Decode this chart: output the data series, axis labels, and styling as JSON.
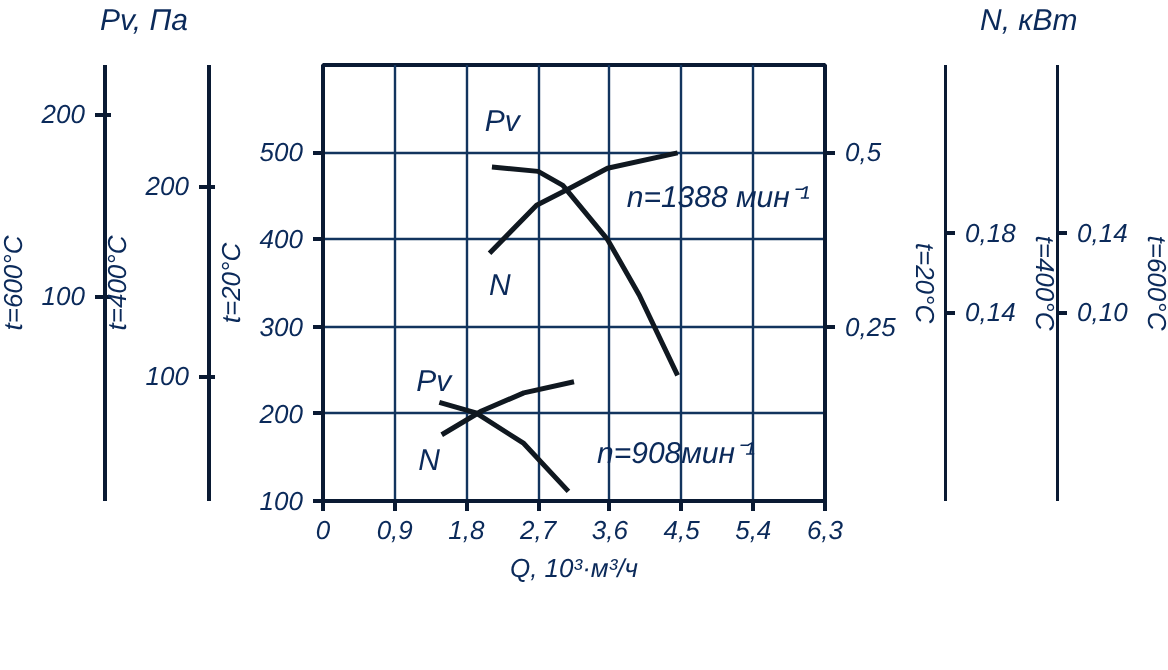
{
  "chart_data": [
    {
      "type": "other",
      "annotations": [
        "200",
        "100",
        "t=600°C"
      ]
    },
    {
      "type": "other",
      "annotations": [
        "200",
        "100",
        "t=400°C"
      ]
    },
    {
      "type": "line",
      "xlabel": "Q, 10³·м³/ч",
      "ylabel": "Pv, Па",
      "y2label": "N, кВт",
      "xlim": [
        0,
        6.3
      ],
      "xticks": [
        0,
        {
          "value": 0.9,
          "label": "0,9"
        },
        {
          "value": 1.8,
          "label": "1,8"
        },
        {
          "value": 2.7,
          "label": "2,7"
        },
        {
          "value": 3.6,
          "label": "3,6"
        },
        {
          "value": 4.5,
          "label": "4,5"
        },
        {
          "value": 5.4,
          "label": "5,4"
        },
        {
          "value": 6.3,
          "label": "6,3"
        }
      ],
      "ylim": [
        100,
        600
      ],
      "yticks": [
        100,
        200,
        300,
        400,
        500
      ],
      "y2lim": [
        0,
        0.625
      ],
      "y2ticks": [
        {
          "value": 0.25,
          "label": "0,25"
        },
        {
          "value": 0.5,
          "label": "0,5"
        }
      ],
      "grid": true,
      "line_style": "solid",
      "series": [
        {
          "color": "#101820",
          "x": [
            2.12,
            2.7,
            3.01,
            3.57,
            3.97,
            4.45
          ],
          "values": [
            483,
            478,
            462,
            400,
            336,
            244
          ]
        },
        {
          "color": "#101820",
          "axis": "y2",
          "x": [
            2.09,
            2.68,
            3.11,
            3.57,
            4.45
          ],
          "values": [
            0.355,
            0.424,
            0.449,
            0.477,
            0.499
          ]
        },
        {
          "color": "#101820",
          "x": [
            1.46,
            1.92,
            2.52,
            3.08
          ],
          "values": [
            213,
            201,
            166,
            111
          ]
        },
        {
          "color": "#101820",
          "axis": "y2",
          "x": [
            1.49,
            1.99,
            2.52,
            3.15
          ],
          "values": [
            0.095,
            0.129,
            0.155,
            0.171
          ]
        }
      ],
      "annotations": [
        "Pv",
        "N",
        "Pv",
        "N",
        "n=1388 мин⁻¹",
        "n=908мин⁻¹",
        "t=20°C",
        "t=20°C"
      ]
    },
    {
      "type": "other",
      "annotations": [
        "0,18",
        "0,14",
        "t=400°C"
      ]
    },
    {
      "type": "other",
      "annotations": [
        "0,14",
        "0,10",
        "t=600°C"
      ]
    }
  ]
}
